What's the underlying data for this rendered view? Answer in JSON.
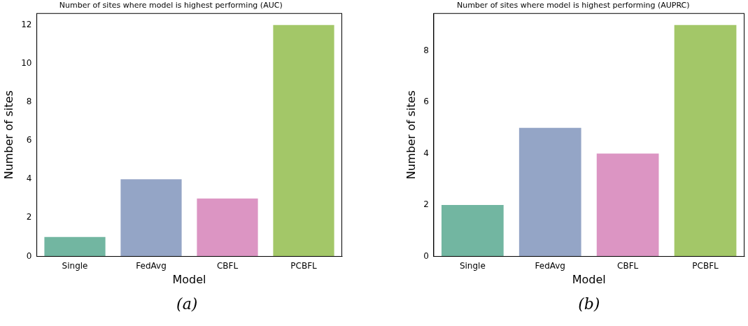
{
  "chart_data": [
    {
      "type": "bar",
      "title": "Number of sites where model is highest performing (AUC)",
      "xlabel": "Model",
      "ylabel": "Number of sites",
      "categories": [
        "Single",
        "FedAvg",
        "CBFL",
        "PCBFL"
      ],
      "values": [
        1,
        4,
        3,
        12
      ],
      "colors": [
        "#72b6a1",
        "#94a5c6",
        "#dc95c3",
        "#a3c768"
      ],
      "ylim": [
        0,
        12.6
      ],
      "yticks": [
        0,
        2,
        4,
        6,
        8,
        10,
        12
      ],
      "grid": false,
      "legend": false,
      "annotations": [
        "(a)"
      ]
    },
    {
      "type": "bar",
      "title": "Number of sites where model is highest performing (AUPRC)",
      "xlabel": "Model",
      "ylabel": "Number of sites",
      "categories": [
        "Single",
        "FedAvg",
        "CBFL",
        "PCBFL"
      ],
      "values": [
        2,
        5,
        4,
        9
      ],
      "colors": [
        "#72b6a1",
        "#94a5c6",
        "#dc95c3",
        "#a3c768"
      ],
      "ylim": [
        0,
        9.45
      ],
      "yticks": [
        0,
        2,
        4,
        6,
        8
      ],
      "grid": false,
      "legend": false,
      "annotations": [
        "(b)"
      ]
    }
  ]
}
